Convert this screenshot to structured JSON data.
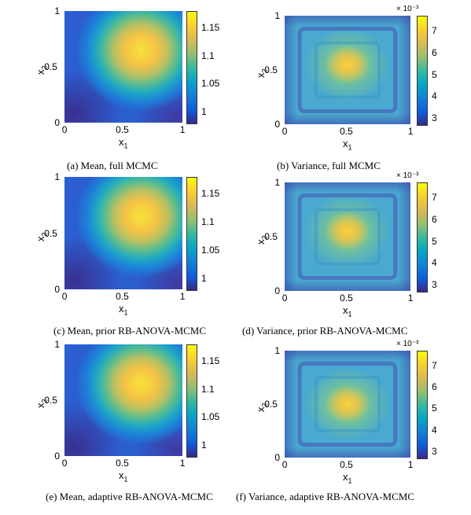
{
  "chart_data": [
    {
      "type": "heatmap",
      "panel": "a",
      "caption": "(a) Mean, full MCMC",
      "xlabel": "x",
      "xlabel_sub": "1",
      "ylabel": "x",
      "ylabel_sub": "2",
      "xticks": [
        "0",
        "0.5",
        "1"
      ],
      "yticks": [
        "0",
        "0.5",
        "1"
      ],
      "xlim": [
        0,
        1
      ],
      "ylim": [
        0,
        1
      ],
      "colorbar_ticks": [
        "1",
        "1.05",
        "1.1",
        "1.15"
      ],
      "colorbar_range": [
        0.98,
        1.18
      ],
      "peak": {
        "x": 0.65,
        "y": 0.65,
        "value": 1.18
      }
    },
    {
      "type": "heatmap",
      "panel": "b",
      "caption": "(b) Variance, full MCMC",
      "xlabel": "x",
      "xlabel_sub": "1",
      "ylabel": "x",
      "ylabel_sub": "2",
      "xticks": [
        "0",
        "0.5",
        "1"
      ],
      "yticks": [
        "0",
        "0.5",
        "1"
      ],
      "xlim": [
        0,
        1
      ],
      "ylim": [
        0,
        1
      ],
      "colorbar_ticks": [
        "3",
        "4",
        "5",
        "6",
        "7"
      ],
      "colorbar_exponent": "× 10⁻³",
      "colorbar_range": [
        2.7,
        7.7
      ],
      "peak": {
        "x": 0.5,
        "y": 0.55,
        "value": 7.0
      }
    },
    {
      "type": "heatmap",
      "panel": "c",
      "caption": "(c) Mean, prior RB-ANOVA-MCMC",
      "xlabel": "x",
      "xlabel_sub": "1",
      "ylabel": "x",
      "ylabel_sub": "2",
      "xticks": [
        "0",
        "0.5",
        "1"
      ],
      "yticks": [
        "0",
        "0.5",
        "1"
      ],
      "xlim": [
        0,
        1
      ],
      "ylim": [
        0,
        1
      ],
      "colorbar_ticks": [
        "1",
        "1.05",
        "1.1",
        "1.15"
      ],
      "colorbar_range": [
        0.98,
        1.18
      ],
      "peak": {
        "x": 0.65,
        "y": 0.65,
        "value": 1.18
      }
    },
    {
      "type": "heatmap",
      "panel": "d",
      "caption": "(d) Variance, prior RB-ANOVA-MCMC",
      "xlabel": "x",
      "xlabel_sub": "1",
      "ylabel": "x",
      "ylabel_sub": "2",
      "xticks": [
        "0",
        "0.5",
        "1"
      ],
      "yticks": [
        "0",
        "0.5",
        "1"
      ],
      "xlim": [
        0,
        1
      ],
      "ylim": [
        0,
        1
      ],
      "colorbar_ticks": [
        "3",
        "4",
        "5",
        "6",
        "7"
      ],
      "colorbar_exponent": "× 10⁻³",
      "colorbar_range": [
        2.7,
        7.7
      ],
      "peak": {
        "x": 0.5,
        "y": 0.55,
        "value": 6.5
      }
    },
    {
      "type": "heatmap",
      "panel": "e",
      "caption": "(e) Mean, adaptive RB-ANOVA-MCMC",
      "xlabel": "x",
      "xlabel_sub": "1",
      "ylabel": "x",
      "ylabel_sub": "2",
      "xticks": [
        "0",
        "0.5",
        "1"
      ],
      "yticks": [
        "0",
        "0.5",
        "1"
      ],
      "xlim": [
        0,
        1
      ],
      "ylim": [
        0,
        1
      ],
      "colorbar_ticks": [
        "1",
        "1.05",
        "1.1",
        "1.15"
      ],
      "colorbar_range": [
        0.98,
        1.18
      ],
      "peak": {
        "x": 0.65,
        "y": 0.65,
        "value": 1.18
      }
    },
    {
      "type": "heatmap",
      "panel": "f",
      "caption": "(f) Variance, adaptive RB-ANOVA-MCMC",
      "xlabel": "x",
      "xlabel_sub": "1",
      "ylabel": "x",
      "ylabel_sub": "2",
      "xticks": [
        "0",
        "0.5",
        "1"
      ],
      "yticks": [
        "0",
        "0.5",
        "1"
      ],
      "xlim": [
        0,
        1
      ],
      "ylim": [
        0,
        1
      ],
      "colorbar_ticks": [
        "3",
        "4",
        "5",
        "6",
        "7"
      ],
      "colorbar_exponent": "× 10⁻³",
      "colorbar_range": [
        2.7,
        7.7
      ],
      "peak": {
        "x": 0.5,
        "y": 0.5,
        "value": 6.3
      }
    }
  ]
}
